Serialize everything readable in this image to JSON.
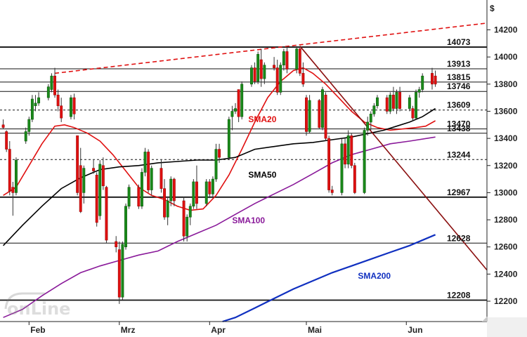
{
  "chart_data": {
    "type": "candlestick",
    "currency": "$",
    "ylim": [
      12050,
      14420
    ],
    "yticks": [
      12200,
      12400,
      12600,
      12800,
      13000,
      13200,
      13400,
      13600,
      13800,
      14000,
      14200
    ],
    "month_labels": [
      {
        "label": "Feb",
        "day": 8
      },
      {
        "label": "Mrz",
        "day": 36
      },
      {
        "label": "Apr",
        "day": 64
      },
      {
        "label": "Mai",
        "day": 94
      },
      {
        "label": "Jun",
        "day": 125
      }
    ],
    "levels": [
      {
        "value": 14073,
        "label": "14073",
        "style": "solid-thick"
      },
      {
        "value": 13913,
        "label": "13913",
        "style": "solid"
      },
      {
        "value": 13815,
        "label": "13815",
        "style": "solid"
      },
      {
        "value": 13746,
        "label": "13746",
        "style": "solid"
      },
      {
        "value": 13609,
        "label": "13609",
        "style": "dashed"
      },
      {
        "value": 13470,
        "label": "13470",
        "style": "solid"
      },
      {
        "value": 13438,
        "label": "13438",
        "style": "solid"
      },
      {
        "value": 13244,
        "label": "13244",
        "style": "dashed"
      },
      {
        "value": 12967,
        "label": "12967",
        "style": "solid-thick"
      },
      {
        "value": 12628,
        "label": "12628",
        "style": "solid"
      },
      {
        "value": 12208,
        "label": "12208",
        "style": "solid-thick"
      }
    ],
    "annotations": [
      {
        "text": "SMA20",
        "day": 76,
        "value": 13520,
        "color": "#e01010"
      },
      {
        "text": "SMA50",
        "day": 76,
        "value": 13110,
        "color": "#000000"
      },
      {
        "text": "SMA100",
        "day": 71,
        "value": 12775,
        "color": "#8a1a9a"
      },
      {
        "text": "SMA200",
        "day": 110,
        "value": 12365,
        "color": "#1030c0"
      }
    ],
    "candles": [
      [
        0,
        13500,
        13540,
        13470,
        13480
      ],
      [
        1,
        13450,
        13460,
        13300,
        13320
      ],
      [
        2,
        13320,
        13380,
        12980,
        13010
      ],
      [
        3,
        13040,
        13080,
        12830,
        13000
      ],
      [
        4,
        13000,
        13260,
        12980,
        13240
      ],
      [
        7,
        13380,
        13480,
        13360,
        13450
      ],
      [
        8,
        13450,
        13560,
        13420,
        13540
      ],
      [
        9,
        13540,
        13720,
        13520,
        13690
      ],
      [
        10,
        13640,
        13720,
        13600,
        13660
      ],
      [
        11,
        13660,
        13740,
        13640,
        13700
      ],
      [
        14,
        13700,
        13800,
        13680,
        13780
      ],
      [
        15,
        13760,
        13880,
        13740,
        13860
      ],
      [
        16,
        13860,
        13920,
        13700,
        13720
      ],
      [
        17,
        13720,
        13760,
        13600,
        13640
      ],
      [
        18,
        13640,
        13700,
        13520,
        13550
      ],
      [
        21,
        13560,
        13720,
        13540,
        13700
      ],
      [
        22,
        13700,
        13730,
        13540,
        13580
      ],
      [
        23,
        13420,
        13420,
        12980,
        13000
      ],
      [
        24,
        13200,
        13330,
        12850,
        12860
      ],
      [
        25,
        13000,
        13200,
        12920,
        13180
      ],
      [
        28,
        13180,
        13240,
        13140,
        13160
      ],
      [
        29,
        13130,
        13150,
        12750,
        12780
      ],
      [
        30,
        12830,
        13240,
        12800,
        13210
      ],
      [
        31,
        13200,
        13260,
        13020,
        13050
      ],
      [
        32,
        13040,
        13050,
        12630,
        12650
      ],
      [
        35,
        12640,
        12680,
        12560,
        12600
      ],
      [
        36,
        12580,
        12640,
        12180,
        12230
      ],
      [
        37,
        12230,
        12640,
        12210,
        12620
      ],
      [
        38,
        12600,
        12920,
        12580,
        12900
      ],
      [
        39,
        12900,
        13060,
        12880,
        13040
      ],
      [
        42,
        13040,
        13060,
        12880,
        12900
      ],
      [
        43,
        12900,
        13180,
        12880,
        13150
      ],
      [
        44,
        13150,
        13330,
        13120,
        13300
      ],
      [
        45,
        13300,
        13320,
        13000,
        13020
      ],
      [
        46,
        13020,
        13200,
        12980,
        13180
      ],
      [
        49,
        13180,
        13240,
        13000,
        13030
      ],
      [
        50,
        13030,
        13100,
        12800,
        12820
      ],
      [
        51,
        12820,
        12960,
        12760,
        12940
      ],
      [
        52,
        12940,
        13120,
        12900,
        13100
      ],
      [
        53,
        13100,
        13110,
        12900,
        12940
      ],
      [
        56,
        12940,
        12970,
        12640,
        12680
      ],
      [
        57,
        12680,
        12840,
        12640,
        12820
      ],
      [
        58,
        12820,
        12920,
        12760,
        12900
      ],
      [
        59,
        12900,
        13100,
        12880,
        13080
      ],
      [
        60,
        13080,
        13200,
        12880,
        12920
      ],
      [
        63,
        12920,
        13100,
        12900,
        13080
      ],
      [
        64,
        13080,
        13100,
        12960,
        12990
      ],
      [
        65,
        12990,
        13120,
        12960,
        13100
      ],
      [
        66,
        13100,
        13360,
        13080,
        13320
      ],
      [
        67,
        13320,
        13360,
        13220,
        13260
      ],
      [
        70,
        13260,
        13560,
        13240,
        13540
      ],
      [
        71,
        13560,
        13640,
        13460,
        13600
      ],
      [
        72,
        13600,
        13660,
        13580,
        13620
      ],
      [
        73,
        13760,
        13760,
        13520,
        13560
      ],
      [
        74,
        13560,
        13820,
        13540,
        13800
      ],
      [
        77,
        13800,
        13940,
        13780,
        13920
      ],
      [
        78,
        13920,
        13960,
        13800,
        13820
      ],
      [
        79,
        13820,
        14040,
        13800,
        14020
      ],
      [
        80,
        13980,
        14060,
        13780,
        13840
      ],
      [
        81,
        13840,
        13960,
        13800,
        13940
      ],
      [
        84,
        13940,
        14000,
        13900,
        13920
      ],
      [
        85,
        13920,
        13980,
        13720,
        13740
      ],
      [
        86,
        13740,
        13960,
        13720,
        13940
      ],
      [
        87,
        13940,
        14060,
        13900,
        14040
      ],
      [
        88,
        14040,
        14080,
        13880,
        13910
      ],
      [
        91,
        13910,
        14080,
        13880,
        14060
      ],
      [
        92,
        14060,
        14080,
        13860,
        13880
      ],
      [
        93,
        13880,
        13960,
        13780,
        13800
      ],
      [
        94,
        13700,
        13720,
        13420,
        13450
      ],
      [
        95,
        13450,
        13720,
        13440,
        13680
      ],
      [
        98,
        13680,
        13690,
        13470,
        13480
      ],
      [
        99,
        13480,
        13780,
        13460,
        13760
      ],
      [
        100,
        13720,
        13740,
        13380,
        13400
      ],
      [
        101,
        13400,
        13420,
        13000,
        13020
      ],
      [
        102,
        13020,
        13050,
        12980,
        13000
      ],
      [
        105,
        13000,
        13400,
        12980,
        13360
      ],
      [
        106,
        13360,
        13400,
        13180,
        13210
      ],
      [
        107,
        13210,
        13460,
        13180,
        13420
      ],
      [
        108,
        13420,
        13440,
        13180,
        13200
      ],
      [
        109,
        13200,
        13220,
        12990,
        13000
      ],
      [
        112,
        13000,
        13480,
        12990,
        13460
      ],
      [
        113,
        13460,
        13560,
        13420,
        13520
      ],
      [
        114,
        13520,
        13600,
        13460,
        13580
      ],
      [
        115,
        13580,
        13660,
        13560,
        13640
      ],
      [
        116,
        13640,
        13720,
        13620,
        13700
      ],
      [
        119,
        13700,
        13720,
        13580,
        13600
      ],
      [
        120,
        13600,
        13740,
        13580,
        13720
      ],
      [
        121,
        13720,
        13780,
        13600,
        13620
      ],
      [
        122,
        13620,
        13760,
        13580,
        13740
      ],
      [
        123,
        13740,
        13780,
        13600,
        13620
      ],
      [
        126,
        13620,
        13720,
        13600,
        13700
      ],
      [
        127,
        13620,
        13640,
        13530,
        13550
      ],
      [
        128,
        13550,
        13760,
        13540,
        13740
      ],
      [
        129,
        13740,
        13780,
        13700,
        13760
      ],
      [
        130,
        13760,
        13880,
        13740,
        13860
      ],
      [
        133,
        13880,
        13920,
        13760,
        13800
      ],
      [
        134,
        13860,
        13900,
        13780,
        13800
      ]
    ],
    "series": [
      {
        "name": "SMA20",
        "color": "#e01010",
        "points": [
          [
            0,
            12980
          ],
          [
            4,
            13040
          ],
          [
            8,
            13200
          ],
          [
            12,
            13360
          ],
          [
            16,
            13490
          ],
          [
            19,
            13500
          ],
          [
            22,
            13480
          ],
          [
            26,
            13440
          ],
          [
            30,
            13380
          ],
          [
            34,
            13280
          ],
          [
            38,
            13160
          ],
          [
            42,
            13040
          ],
          [
            46,
            12980
          ],
          [
            50,
            12950
          ],
          [
            54,
            12900
          ],
          [
            58,
            12870
          ],
          [
            62,
            12880
          ],
          [
            66,
            12980
          ],
          [
            70,
            13130
          ],
          [
            74,
            13320
          ],
          [
            78,
            13520
          ],
          [
            82,
            13700
          ],
          [
            86,
            13820
          ],
          [
            90,
            13900
          ],
          [
            93,
            13920
          ],
          [
            96,
            13880
          ],
          [
            100,
            13800
          ],
          [
            104,
            13700
          ],
          [
            108,
            13600
          ],
          [
            112,
            13520
          ],
          [
            116,
            13480
          ],
          [
            120,
            13460
          ],
          [
            124,
            13470
          ],
          [
            128,
            13480
          ],
          [
            131,
            13490
          ],
          [
            134,
            13530
          ]
        ]
      },
      {
        "name": "SMA50",
        "color": "#000000",
        "points": [
          [
            0,
            12610
          ],
          [
            6,
            12760
          ],
          [
            12,
            12900
          ],
          [
            18,
            13030
          ],
          [
            24,
            13110
          ],
          [
            30,
            13170
          ],
          [
            36,
            13190
          ],
          [
            42,
            13200
          ],
          [
            48,
            13220
          ],
          [
            54,
            13230
          ],
          [
            60,
            13240
          ],
          [
            66,
            13240
          ],
          [
            72,
            13260
          ],
          [
            78,
            13320
          ],
          [
            84,
            13340
          ],
          [
            90,
            13360
          ],
          [
            96,
            13370
          ],
          [
            102,
            13390
          ],
          [
            108,
            13410
          ],
          [
            114,
            13440
          ],
          [
            118,
            13460
          ],
          [
            122,
            13490
          ],
          [
            126,
            13520
          ],
          [
            130,
            13560
          ],
          [
            134,
            13620
          ]
        ]
      },
      {
        "name": "SMA100",
        "color": "#8a1a9a",
        "points": [
          [
            0,
            12080
          ],
          [
            6,
            12140
          ],
          [
            12,
            12240
          ],
          [
            18,
            12330
          ],
          [
            24,
            12410
          ],
          [
            30,
            12460
          ],
          [
            36,
            12500
          ],
          [
            42,
            12540
          ],
          [
            48,
            12570
          ],
          [
            54,
            12640
          ],
          [
            60,
            12700
          ],
          [
            66,
            12760
          ],
          [
            72,
            12840
          ],
          [
            78,
            12920
          ],
          [
            84,
            12990
          ],
          [
            90,
            13060
          ],
          [
            96,
            13140
          ],
          [
            102,
            13220
          ],
          [
            108,
            13280
          ],
          [
            114,
            13320
          ],
          [
            120,
            13360
          ],
          [
            126,
            13380
          ],
          [
            134,
            13410
          ]
        ]
      },
      {
        "name": "SMA200",
        "color": "#1030c0",
        "points": [
          [
            68,
            12050
          ],
          [
            72,
            12080
          ],
          [
            78,
            12150
          ],
          [
            84,
            12220
          ],
          [
            90,
            12290
          ],
          [
            96,
            12350
          ],
          [
            102,
            12410
          ],
          [
            108,
            12460
          ],
          [
            114,
            12510
          ],
          [
            120,
            12560
          ],
          [
            126,
            12610
          ],
          [
            134,
            12690
          ]
        ]
      },
      {
        "name": "upper-trend",
        "color": "#e01010",
        "dashed": true,
        "points": [
          [
            16,
            13880
          ],
          [
            150,
            14250
          ]
        ]
      },
      {
        "name": "down-trend",
        "color": "#8b1010",
        "points": [
          [
            92,
            14080
          ],
          [
            150,
            12430
          ]
        ]
      }
    ]
  }
}
